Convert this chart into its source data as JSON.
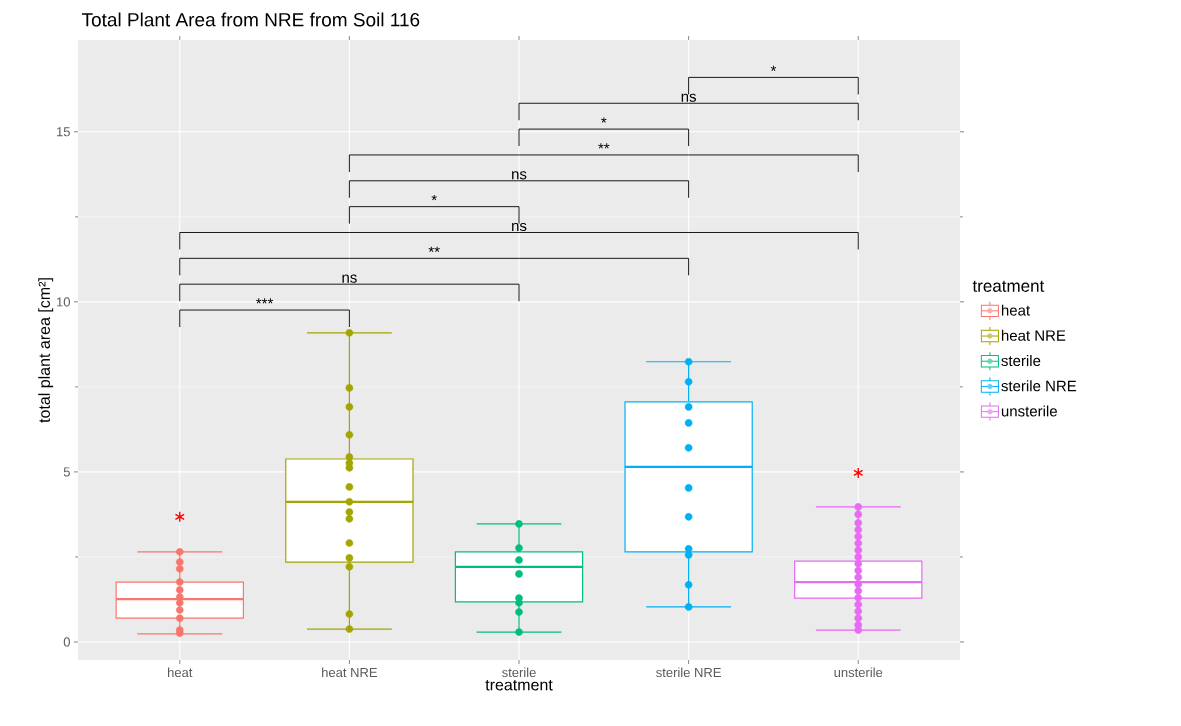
{
  "chart_data": {
    "type": "box",
    "title": "Total Plant Area from NRE from Soil 116",
    "xlabel": "treatment",
    "ylabel": "total plant area [cm²]",
    "legend_title": "treatment",
    "categories": [
      "heat",
      "heat NRE",
      "sterile",
      "sterile NRE",
      "unsterile"
    ],
    "colors": [
      "#f8766d",
      "#a3a500",
      "#00bf7d",
      "#00b0f6",
      "#e76bf3"
    ],
    "boxes": [
      {
        "low": 0.24,
        "q1": 0.7,
        "median": 1.26,
        "q3": 1.76,
        "high": 2.65
      },
      {
        "low": 0.38,
        "q1": 2.35,
        "median": 4.12,
        "q3": 5.38,
        "high": 9.09
      },
      {
        "low": 0.29,
        "q1": 1.18,
        "median": 2.21,
        "q3": 2.65,
        "high": 3.47
      },
      {
        "low": 1.03,
        "q1": 2.65,
        "median": 5.15,
        "q3": 7.06,
        "high": 8.24
      },
      {
        "low": 0.35,
        "q1": 1.29,
        "median": 1.76,
        "q3": 2.38,
        "high": 3.97
      }
    ],
    "series": [
      {
        "name": "heat",
        "type": "scatter",
        "color": "#f8766d",
        "marker": "circle",
        "x": [
          "heat",
          "heat",
          "heat",
          "heat",
          "heat",
          "heat",
          "heat",
          "heat",
          "heat",
          "heat",
          "heat"
        ],
        "values": [
          2.65,
          2.35,
          2.15,
          1.76,
          1.53,
          1.32,
          1.15,
          0.94,
          0.7,
          0.35,
          0.26
        ]
      },
      {
        "name": "heat NRE",
        "type": "scatter",
        "color": "#a3a500",
        "marker": "circle",
        "x": [
          "heat NRE",
          "heat NRE",
          "heat NRE",
          "heat NRE",
          "heat NRE",
          "heat NRE",
          "heat NRE",
          "heat NRE",
          "heat NRE",
          "heat NRE",
          "heat NRE",
          "heat NRE",
          "heat NRE",
          "heat NRE",
          "heat NRE",
          "heat NRE"
        ],
        "values": [
          9.09,
          7.47,
          6.91,
          6.09,
          5.44,
          5.26,
          5.12,
          4.56,
          4.12,
          3.82,
          3.62,
          2.91,
          2.47,
          2.21,
          0.82,
          0.38
        ]
      },
      {
        "name": "sterile",
        "type": "scatter",
        "color": "#00bf7d",
        "marker": "circle",
        "x": [
          "sterile",
          "sterile",
          "sterile",
          "sterile",
          "sterile",
          "sterile",
          "sterile",
          "sterile"
        ],
        "values": [
          3.47,
          2.76,
          2.41,
          2.0,
          1.29,
          1.15,
          0.88,
          0.29
        ]
      },
      {
        "name": "sterile NRE",
        "type": "scatter",
        "color": "#00b0f6",
        "marker": "circle",
        "x": [
          "sterile NRE",
          "sterile NRE",
          "sterile NRE",
          "sterile NRE",
          "sterile NRE",
          "sterile NRE",
          "sterile NRE",
          "sterile NRE",
          "sterile NRE",
          "sterile NRE",
          "sterile NRE"
        ],
        "values": [
          8.24,
          7.65,
          6.91,
          6.44,
          5.71,
          4.53,
          3.68,
          2.74,
          2.56,
          1.68,
          1.03
        ]
      },
      {
        "name": "unsterile",
        "type": "scatter",
        "color": "#e76bf3",
        "marker": "circle",
        "x": [
          "unsterile",
          "unsterile",
          "unsterile",
          "unsterile",
          "unsterile",
          "unsterile",
          "unsterile",
          "unsterile",
          "unsterile",
          "unsterile",
          "unsterile",
          "unsterile",
          "unsterile",
          "unsterile",
          "unsterile",
          "unsterile",
          "unsterile",
          "unsterile",
          "unsterile"
        ],
        "values": [
          3.97,
          3.75,
          3.5,
          3.3,
          3.1,
          2.9,
          2.7,
          2.5,
          2.3,
          2.1,
          1.9,
          1.7,
          1.5,
          1.3,
          1.1,
          0.9,
          0.7,
          0.5,
          0.35
        ]
      },
      {
        "type": "scatter",
        "color": "#ff0000",
        "marker": "cross",
        "x": [
          "heat",
          "unsterile"
        ],
        "values": [
          3.68,
          4.97
        ]
      }
    ],
    "annotations": [
      "***",
      "ns",
      "**",
      "ns",
      "*",
      "ns",
      "**",
      "*",
      "ns",
      "*"
    ],
    "ylim": [
      -0.53,
      17.7
    ],
    "yticks": [
      0,
      5,
      10,
      15
    ],
    "grid": true,
    "legend": "right"
  }
}
